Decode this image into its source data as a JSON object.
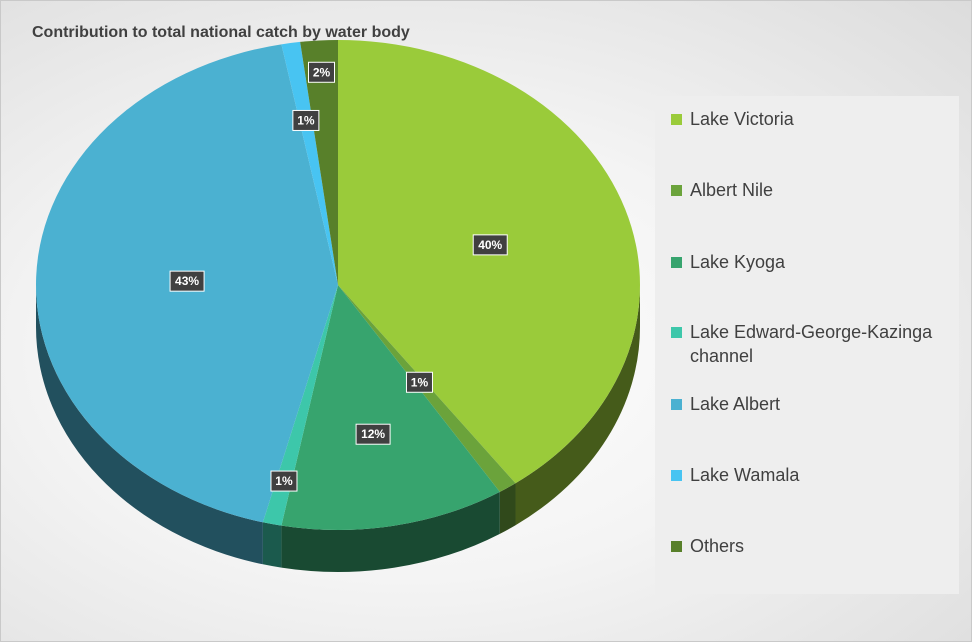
{
  "chart_data": {
    "type": "pie",
    "title": "Contribution to total national catch by water body",
    "slices": [
      {
        "label": "Lake Victoria",
        "value": 40,
        "display": "40%",
        "color": "#9ACB3A"
      },
      {
        "label": "Albert Nile",
        "value": 1,
        "display": "1%",
        "color": "#6BA33B"
      },
      {
        "label": "Lake Kyoga",
        "value": 12,
        "display": "12%",
        "color": "#37A46E"
      },
      {
        "label": "Lake Edward-George-Kazinga channel",
        "value": 1,
        "display": "1%",
        "color": "#3DC7AA"
      },
      {
        "label": "Lake Albert",
        "value": 43,
        "display": "43%",
        "color": "#4BB1D1"
      },
      {
        "label": "Lake Wamala",
        "value": 1,
        "display": "1%",
        "color": "#48C4F2"
      },
      {
        "label": "Others",
        "value": 2,
        "display": "2%",
        "color": "#58802A"
      }
    ],
    "legend_position": "right"
  }
}
